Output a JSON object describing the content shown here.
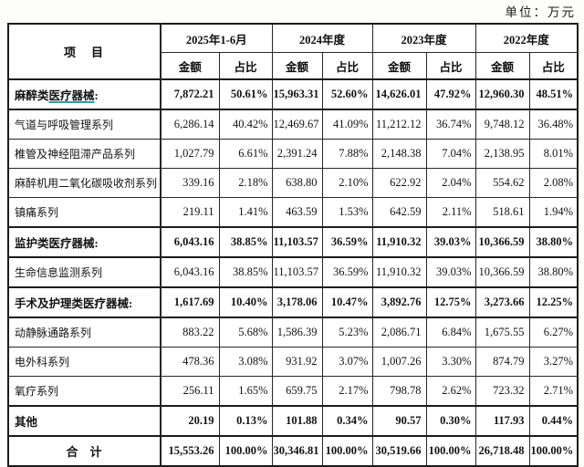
{
  "unit_label": "单位：万元",
  "table": {
    "item_header": "项　目",
    "amount_label": "金额",
    "ratio_label": "占比",
    "periods": [
      "2025年1-6月",
      "2024年度",
      "2023年度",
      "2022年度"
    ],
    "rows": [
      {
        "label": "麻醉类医疗器械:",
        "style": "section",
        "underline": "医疗器械",
        "values": [
          "7,872.21",
          "50.61%",
          "15,963.31",
          "52.60%",
          "14,626.01",
          "47.92%",
          "12,960.30",
          "48.51%"
        ]
      },
      {
        "label": "气道与呼吸管理系列",
        "style": "normal",
        "values": [
          "6,286.14",
          "40.42%",
          "12,469.67",
          "41.09%",
          "11,212.12",
          "36.74%",
          "9,748.12",
          "36.48%"
        ]
      },
      {
        "label": "椎管及神经阻滞产品系列",
        "style": "normal",
        "values": [
          "1,027.79",
          "6.61%",
          "2,391.24",
          "7.88%",
          "2,148.38",
          "7.04%",
          "2,138.95",
          "8.01%"
        ]
      },
      {
        "label": "麻醉机用二氧化碳吸收剂系列",
        "style": "normal",
        "values": [
          "339.16",
          "2.18%",
          "638.80",
          "2.10%",
          "622.92",
          "2.04%",
          "554.62",
          "2.08%"
        ]
      },
      {
        "label": "镇痛系列",
        "style": "normal",
        "values": [
          "219.11",
          "1.41%",
          "463.59",
          "1.53%",
          "642.59",
          "2.11%",
          "518.61",
          "1.94%"
        ]
      },
      {
        "label": "监护类医疗器械:",
        "style": "section",
        "values": [
          "6,043.16",
          "38.85%",
          "11,103.57",
          "36.59%",
          "11,910.32",
          "39.03%",
          "10,366.59",
          "38.80%"
        ]
      },
      {
        "label": "生命信息监测系列",
        "style": "normal",
        "values": [
          "6,043.16",
          "38.85%",
          "11,103.57",
          "36.59%",
          "11,910.32",
          "39.03%",
          "10,366.59",
          "38.80%"
        ]
      },
      {
        "label": "手术及护理类医疗器械:",
        "style": "section",
        "values": [
          "1,617.69",
          "10.40%",
          "3,178.06",
          "10.47%",
          "3,892.76",
          "12.75%",
          "3,273.66",
          "12.25%"
        ]
      },
      {
        "label": "动静脉通路系列",
        "style": "normal",
        "values": [
          "883.22",
          "5.68%",
          "1,586.39",
          "5.23%",
          "2,086.71",
          "6.84%",
          "1,675.55",
          "6.27%"
        ]
      },
      {
        "label": "电外科系列",
        "style": "normal",
        "values": [
          "478.36",
          "3.08%",
          "931.92",
          "3.07%",
          "1,007.26",
          "3.30%",
          "874.79",
          "3.27%"
        ]
      },
      {
        "label": "氧疗系列",
        "style": "normal",
        "values": [
          "256.11",
          "1.65%",
          "659.75",
          "2.17%",
          "798.78",
          "2.62%",
          "723.32",
          "2.71%"
        ]
      },
      {
        "label": "其他",
        "style": "section",
        "values": [
          "20.19",
          "0.13%",
          "101.88",
          "0.34%",
          "90.57",
          "0.30%",
          "117.93",
          "0.44%"
        ]
      },
      {
        "label": "合　计",
        "style": "total",
        "values": [
          "15,553.26",
          "100.00%",
          "30,346.81",
          "100.00%",
          "30,519.66",
          "100.00%",
          "26,718.48",
          "100.00%"
        ]
      }
    ]
  },
  "colors": {
    "border": "#1b1b1b",
    "text": "#111111",
    "annotation_underline": "#2f9e9e",
    "background": "#fdfdfc"
  }
}
